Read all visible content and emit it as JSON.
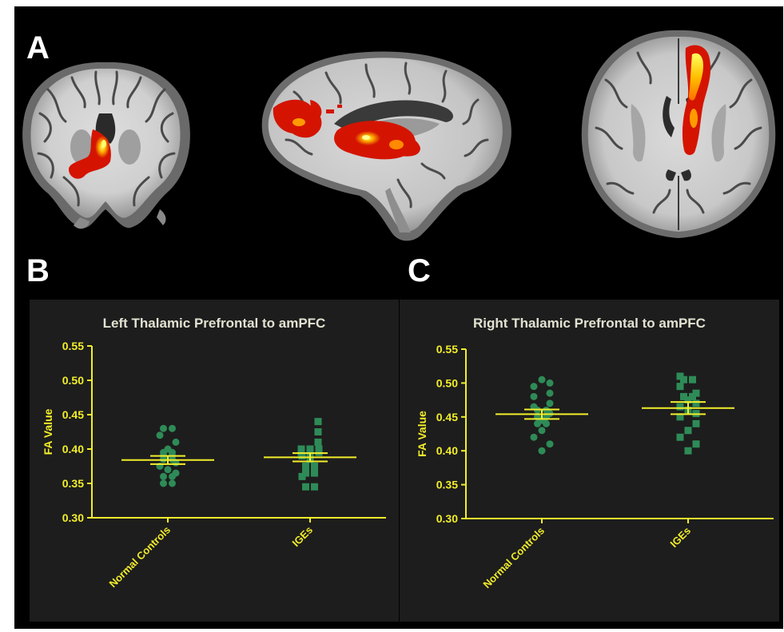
{
  "figure": {
    "panel_labels": [
      "A",
      "B",
      "C"
    ],
    "colors": {
      "background": "#000000",
      "chart_background": "#1d1d1d",
      "axis": "#f2ee2a",
      "points": "#2e8b57",
      "activation_low": "#d41400",
      "activation_high": "#ffff70"
    }
  },
  "chart_data": [
    {
      "type": "scatter",
      "title": "Left Thalamic Prefrontal to amPFC",
      "xlabel": "",
      "ylabel": "FA Value",
      "ylim": [
        0.3,
        0.55
      ],
      "yticks": [
        "0.30",
        "0.35",
        "0.40",
        "0.45",
        "0.50",
        "0.55"
      ],
      "categories": [
        "Normal Controls",
        "IGEs"
      ],
      "series": [
        {
          "marker": "circle",
          "category": "Normal Controls",
          "mean": 0.384,
          "sem": 0.006,
          "values": [
            0.43,
            0.43,
            0.42,
            0.41,
            0.4,
            0.395,
            0.395,
            0.39,
            0.39,
            0.385,
            0.385,
            0.38,
            0.375,
            0.37,
            0.365,
            0.36,
            0.36,
            0.35,
            0.35
          ]
        },
        {
          "marker": "square",
          "category": "IGEs",
          "mean": 0.388,
          "sem": 0.006,
          "values": [
            0.44,
            0.425,
            0.41,
            0.4,
            0.4,
            0.4,
            0.395,
            0.395,
            0.395,
            0.39,
            0.385,
            0.375,
            0.375,
            0.365,
            0.365,
            0.36,
            0.345,
            0.345
          ]
        }
      ]
    },
    {
      "type": "scatter",
      "title": "Right Thalamic Prefrontal to amPFC",
      "xlabel": "",
      "ylabel": "FA Value",
      "ylim": [
        0.3,
        0.55
      ],
      "yticks": [
        "0.30",
        "0.35",
        "0.40",
        "0.45",
        "0.50",
        "0.55"
      ],
      "categories": [
        "Normal Controls",
        "IGEs"
      ],
      "series": [
        {
          "marker": "circle",
          "category": "Normal Controls",
          "mean": 0.454,
          "sem": 0.007,
          "values": [
            0.505,
            0.5,
            0.495,
            0.485,
            0.48,
            0.47,
            0.465,
            0.46,
            0.46,
            0.455,
            0.45,
            0.45,
            0.445,
            0.44,
            0.44,
            0.43,
            0.42,
            0.41,
            0.4
          ]
        },
        {
          "marker": "square",
          "category": "IGEs",
          "mean": 0.463,
          "sem": 0.009,
          "values": [
            0.51,
            0.505,
            0.505,
            0.495,
            0.485,
            0.48,
            0.48,
            0.475,
            0.47,
            0.465,
            0.46,
            0.455,
            0.45,
            0.44,
            0.43,
            0.42,
            0.41,
            0.4
          ]
        }
      ]
    }
  ]
}
